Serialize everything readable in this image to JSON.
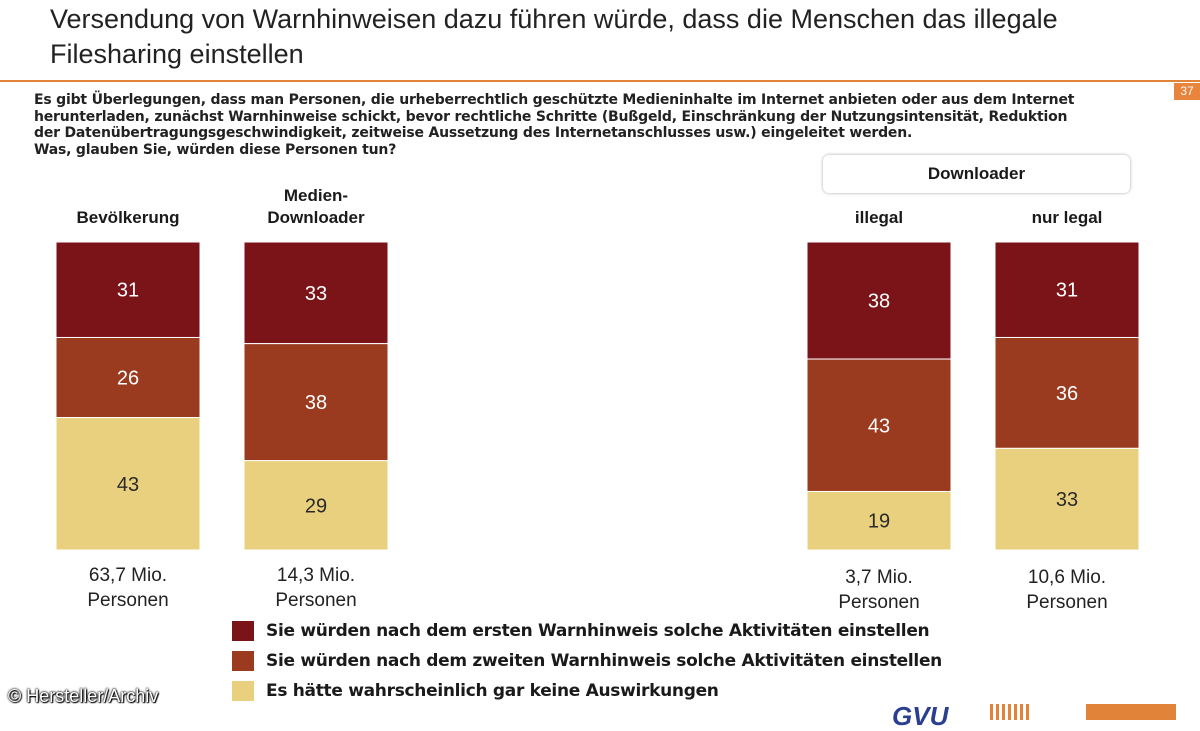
{
  "slide": {
    "title_line1": "Versendung von Warnhinweisen dazu führen würde, dass die Menschen das illegale",
    "title_line2": "Filesharing einstellen",
    "page_number": "37",
    "accent_color": "#e2833a",
    "question_lines": [
      "Es gibt Überlegungen, dass man Personen, die urheberrechtlich geschützte Medieninhalte im Internet anbieten oder aus dem Internet",
      "herunterladen, zunächst Warnhinweise schickt, bevor rechtliche Schritte (Bußgeld, Einschränkung der Nutzungsintensität, Reduktion",
      "der Datenübertragungsgeschwindigkeit, zeitweise Aussetzung des Internetanschlusses usw.) eingeleitet werden.",
      "Was, glauben Sie, würden diese Personen tun?"
    ],
    "group_header": "Downloader",
    "credit": "© Hersteller/Archiv",
    "footer_logo": "GVU"
  },
  "chart_data": {
    "type": "bar",
    "stacked": true,
    "unit": "percent",
    "ylim": [
      0,
      100
    ],
    "categories": [
      {
        "label_lines": [
          "Bevölkerung"
        ],
        "population_lines": [
          "63,7 Mio.",
          "Personen"
        ]
      },
      {
        "label_lines": [
          "Medien-",
          "Downloader"
        ],
        "population_lines": [
          "14,3 Mio.",
          "Personen"
        ]
      },
      {
        "label_lines": [
          "illegal"
        ],
        "population_lines": [
          "3,7 Mio.",
          "Personen"
        ]
      },
      {
        "label_lines": [
          "nur legal"
        ],
        "population_lines": [
          "10,6 Mio.",
          "Personen"
        ]
      }
    ],
    "series": [
      {
        "name": "Sie würden nach dem ersten Warnhinweis solche Aktivitäten einstellen",
        "color": "#7a1419",
        "values": [
          31,
          33,
          38,
          31
        ]
      },
      {
        "name": "Sie würden nach dem zweiten Warnhinweis solche Aktivitäten einstellen",
        "color": "#9a3a1e",
        "values": [
          26,
          38,
          43,
          36
        ]
      },
      {
        "name": "Es hätte wahrscheinlich gar keine Auswirkungen",
        "color": "#e8d07e",
        "values": [
          43,
          29,
          19,
          33
        ]
      }
    ],
    "legend_position": "bottom"
  }
}
